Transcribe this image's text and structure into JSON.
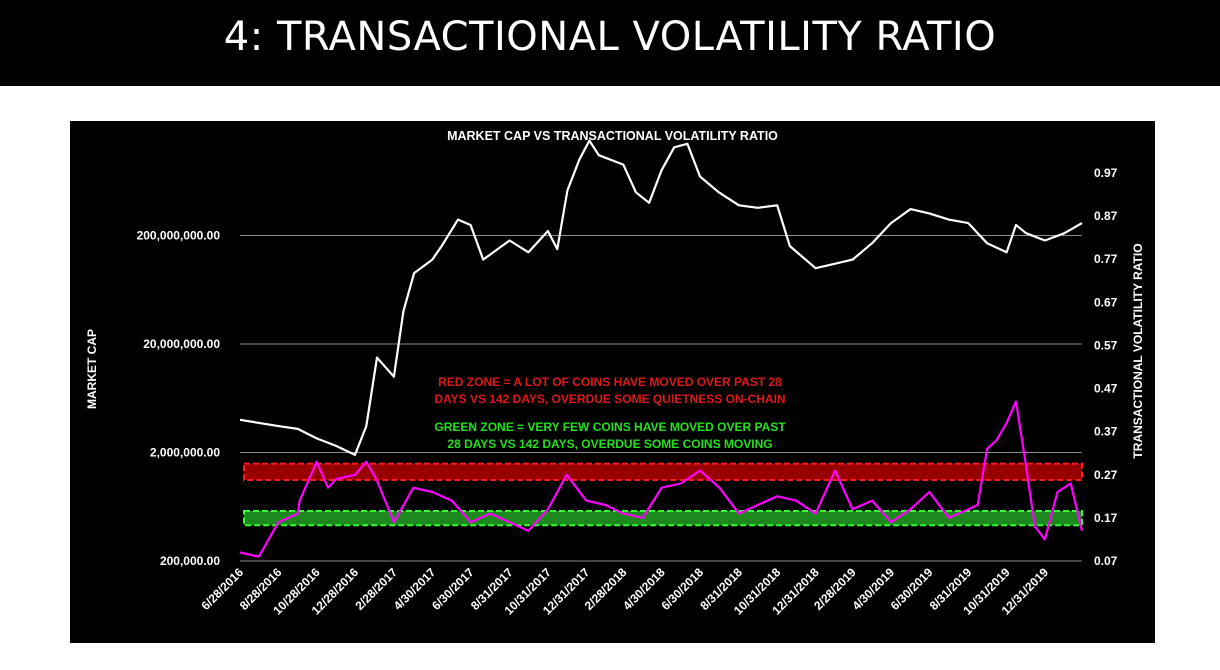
{
  "slide": {
    "title": "4: TRANSACTIONAL VOLATILITY RATIO"
  },
  "chart_data": {
    "type": "line",
    "title": "MARKET CAP VS TRANSACTIONAL VOLATILITY RATIO",
    "y_left_label": "MARKET CAP",
    "y_right_label": "TRANSACTIONAL VOLATILITY RATIO",
    "y_left_scale": "log",
    "y_left_ticks": [
      "200,000,000.00",
      "20,000,000.00",
      "2,000,000.00",
      "200,000.00"
    ],
    "y_right_ticks": [
      "0.97",
      "0.87",
      "0.77",
      "0.67",
      "0.57",
      "0.47",
      "0.37",
      "0.27",
      "0.17",
      "0.07"
    ],
    "y_right_range": [
      0.07,
      0.97
    ],
    "x_ticks": [
      "6/28/2016",
      "8/28/2016",
      "10/28/2016",
      "12/28/2016",
      "2/28/2017",
      "4/30/2017",
      "6/30/2017",
      "8/31/2017",
      "10/31/2017",
      "12/31/2017",
      "2/28/2018",
      "4/30/2018",
      "6/30/2018",
      "8/31/2018",
      "10/31/2018",
      "12/31/2018",
      "2/28/2019",
      "4/30/2019",
      "6/30/2019",
      "8/31/2019",
      "10/31/2019",
      "12/31/2019"
    ],
    "gridlines": "horizontal",
    "series": [
      {
        "name": "Market Cap",
        "axis": "left",
        "color": "#ffffff",
        "x": [
          "6/28/2016",
          "8/28/2016",
          "9/28/2016",
          "10/28/2016",
          "11/28/2016",
          "12/28/2016",
          "1/15/2017",
          "2/1/2017",
          "2/28/2017",
          "3/15/2017",
          "4/1/2017",
          "4/30/2017",
          "5/15/2017",
          "6/10/2017",
          "6/30/2017",
          "7/20/2017",
          "8/31/2017",
          "9/30/2017",
          "10/31/2017",
          "11/15/2017",
          "12/1/2017",
          "12/20/2017",
          "1/5/2018",
          "1/20/2018",
          "2/28/2018",
          "3/20/2018",
          "4/10/2018",
          "4/30/2018",
          "5/20/2018",
          "6/10/2018",
          "6/30/2018",
          "7/30/2018",
          "8/31/2018",
          "9/30/2018",
          "10/31/2018",
          "11/20/2018",
          "12/31/2018",
          "1/31/2019",
          "2/28/2019",
          "3/31/2019",
          "4/30/2019",
          "5/31/2019",
          "6/30/2019",
          "7/31/2019",
          "8/31/2019",
          "9/30/2019",
          "10/31/2019",
          "11/15/2019",
          "12/1/2019",
          "12/31/2019",
          "1/31/2020",
          "2/28/2020"
        ],
        "y": [
          4000000,
          3500000,
          3300000,
          2700000,
          2300000,
          1900000,
          3500000,
          15000000,
          10000000,
          40000000,
          90000000,
          120000000,
          160000000,
          280000000,
          250000000,
          120000000,
          180000000,
          140000000,
          220000000,
          150000000,
          520000000,
          1000000000,
          1500000000,
          1100000000,
          900000000,
          500000000,
          400000000,
          800000000,
          1300000000,
          1400000000,
          700000000,
          500000000,
          380000000,
          360000000,
          380000000,
          160000000,
          100000000,
          110000000,
          120000000,
          170000000,
          260000000,
          350000000,
          320000000,
          280000000,
          260000000,
          170000000,
          140000000,
          250000000,
          210000000,
          180000000,
          210000000,
          260000000
        ]
      },
      {
        "name": "Transactional Volatility Ratio",
        "axis": "right",
        "color": "#ff00ff",
        "x": [
          "6/28/2016",
          "7/28/2016",
          "8/28/2016",
          "9/28/2016",
          "10/1/2016",
          "10/28/2016",
          "11/15/2016",
          "11/28/2016",
          "12/28/2016",
          "1/15/2017",
          "1/31/2017",
          "2/28/2017",
          "3/31/2017",
          "4/30/2017",
          "5/31/2017",
          "6/30/2017",
          "7/31/2017",
          "8/31/2017",
          "9/30/2017",
          "10/31/2017",
          "11/30/2017",
          "12/31/2017",
          "1/31/2018",
          "2/28/2018",
          "3/31/2018",
          "4/30/2018",
          "5/31/2018",
          "6/30/2018",
          "7/31/2018",
          "8/31/2018",
          "9/30/2018",
          "10/31/2018",
          "11/30/2018",
          "12/31/2018",
          "1/31/2019",
          "2/28/2019",
          "3/31/2019",
          "4/30/2019",
          "5/31/2019",
          "6/30/2019",
          "7/31/2019",
          "8/31/2019",
          "9/15/2019",
          "9/30/2019",
          "10/15/2019",
          "10/31/2019",
          "11/15/2019",
          "11/30/2019",
          "12/15/2019",
          "12/31/2019",
          "1/20/2020",
          "2/10/2020",
          "2/28/2020"
        ],
        "y": [
          0.09,
          0.08,
          0.16,
          0.18,
          0.21,
          0.3,
          0.24,
          0.26,
          0.27,
          0.3,
          0.26,
          0.16,
          0.24,
          0.23,
          0.21,
          0.16,
          0.18,
          0.16,
          0.14,
          0.19,
          0.27,
          0.21,
          0.2,
          0.18,
          0.17,
          0.24,
          0.25,
          0.28,
          0.24,
          0.18,
          0.2,
          0.22,
          0.21,
          0.18,
          0.28,
          0.19,
          0.21,
          0.16,
          0.19,
          0.23,
          0.17,
          0.19,
          0.2,
          0.33,
          0.35,
          0.39,
          0.44,
          0.3,
          0.15,
          0.12,
          0.23,
          0.25,
          0.14
        ]
      }
    ],
    "bands": [
      {
        "name": "red-zone",
        "color": "#ff1a1a",
        "fill": "#b30000",
        "range": [
          0.258,
          0.296
        ]
      },
      {
        "name": "green-zone",
        "color": "#33ff33",
        "fill": "#22a022",
        "range": [
          0.153,
          0.186
        ]
      }
    ],
    "annotations": [
      {
        "color": "#e01818",
        "lines": [
          "RED ZONE = A LOT OF COINS HAVE MOVED OVER PAST 28",
          "DAYS VS 142 DAYS, OVERDUE SOME QUIETNESS ON-CHAIN"
        ]
      },
      {
        "color": "#22e01a",
        "lines": [
          "GREEN ZONE = VERY FEW COINS HAVE MOVED OVER PAST",
          "28 DAYS VS 142 DAYS, OVERDUE SOME COINS MOVING"
        ]
      }
    ]
  }
}
